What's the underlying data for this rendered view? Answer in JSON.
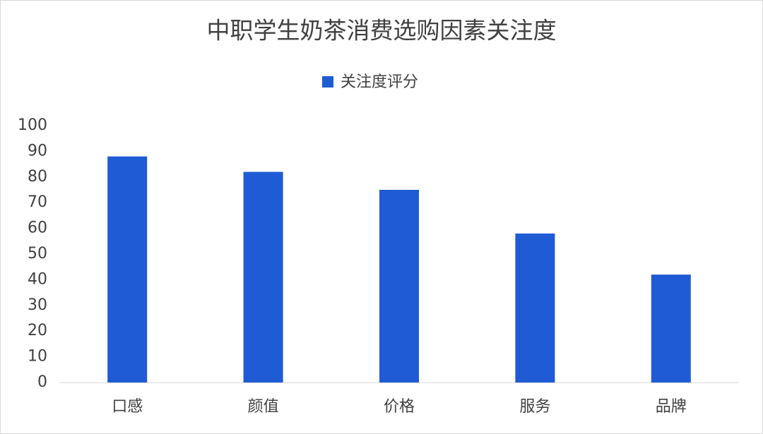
{
  "chart_data": {
    "type": "bar",
    "title": "中职学生奶茶消费选购因素关注度",
    "categories": [
      "口感",
      "颜值",
      "价格",
      "服务",
      "品牌"
    ],
    "series": [
      {
        "name": "关注度评分",
        "color": "#1f5bd4",
        "values": [
          88,
          82,
          75,
          58,
          42
        ]
      }
    ],
    "ylim": [
      0,
      100
    ],
    "yticks": [
      0,
      10,
      20,
      30,
      40,
      50,
      60,
      70,
      80,
      90,
      100
    ],
    "grid": false,
    "legend": "top"
  }
}
